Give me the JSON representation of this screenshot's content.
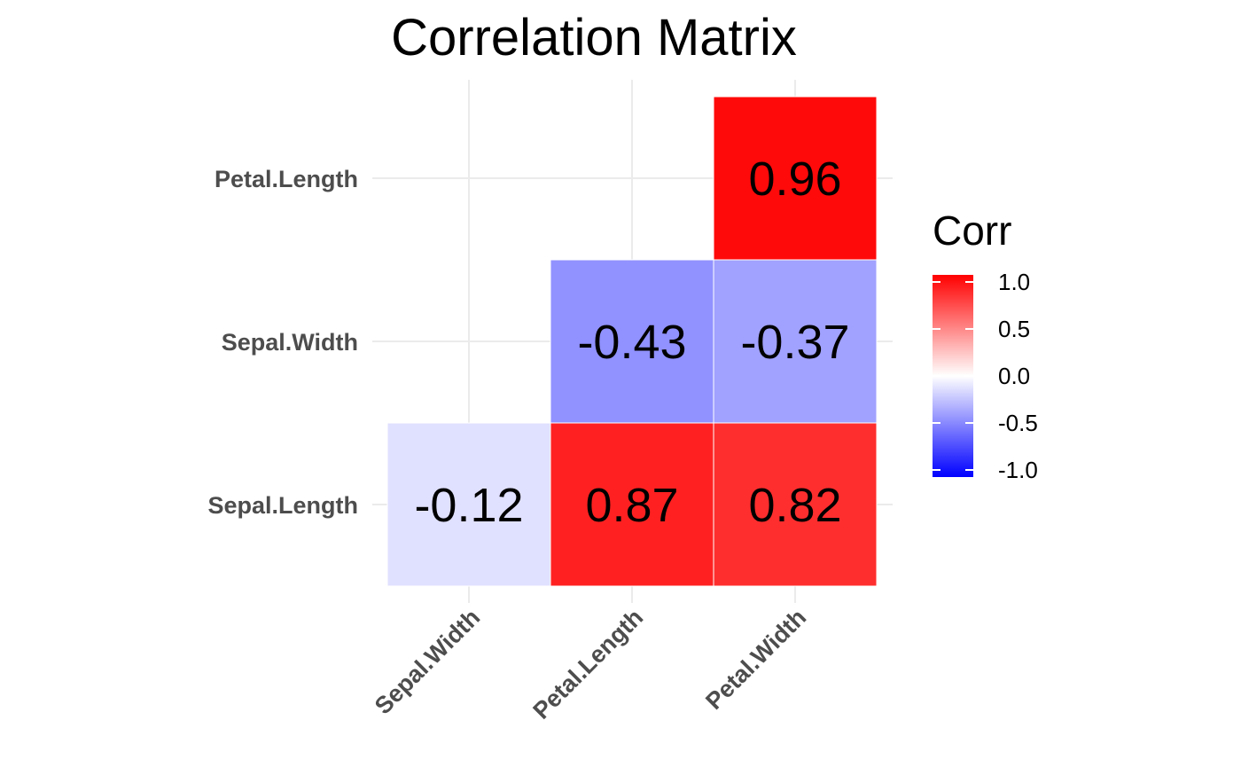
{
  "chart_data": {
    "type": "heatmap",
    "title": "Correlation Matrix",
    "x_categories": [
      "Sepal.Width",
      "Petal.Length",
      "Petal.Width"
    ],
    "y_categories": [
      "Sepal.Length",
      "Sepal.Width",
      "Petal.Length"
    ],
    "cells": [
      {
        "x": "Sepal.Width",
        "y": "Sepal.Length",
        "value": -0.12,
        "label": "-0.12"
      },
      {
        "x": "Petal.Length",
        "y": "Sepal.Length",
        "value": 0.87,
        "label": "0.87"
      },
      {
        "x": "Petal.Width",
        "y": "Sepal.Length",
        "value": 0.82,
        "label": "0.82"
      },
      {
        "x": "Petal.Length",
        "y": "Sepal.Width",
        "value": -0.43,
        "label": "-0.43"
      },
      {
        "x": "Petal.Width",
        "y": "Sepal.Width",
        "value": -0.37,
        "label": "-0.37"
      },
      {
        "x": "Petal.Width",
        "y": "Petal.Length",
        "value": 0.96,
        "label": "0.96"
      }
    ],
    "legend": {
      "title": "Corr",
      "range": [
        -1,
        1
      ],
      "ticks": [
        {
          "value": 1.0,
          "label": "1.0"
        },
        {
          "value": 0.5,
          "label": "0.5"
        },
        {
          "value": 0.0,
          "label": "0.0"
        },
        {
          "value": -0.5,
          "label": "-0.5"
        },
        {
          "value": -1.0,
          "label": "-1.0"
        }
      ],
      "colors": {
        "low": "#0000ff",
        "mid": "#ffffff",
        "high": "#ff0000"
      }
    },
    "grid": true,
    "legend_position": "right"
  }
}
